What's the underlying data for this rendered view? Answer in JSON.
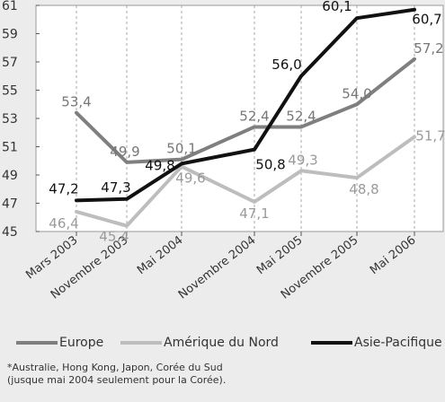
{
  "chart_data": {
    "type": "line",
    "categories": [
      "Mars 2003",
      "Novembre 2003",
      "Mai 2004",
      "Novembre 2004",
      "Mai 2005",
      "Novembre 2005",
      "Mai 2006"
    ],
    "y_ticks": [
      "61",
      "59",
      "57",
      "55",
      "53",
      "51",
      "49",
      "47",
      "45"
    ],
    "ylim": [
      45,
      61
    ],
    "grid": "vertical dashed",
    "legend_position": "bottom",
    "series": [
      {
        "name": "Europe",
        "color": "#7f7f7f",
        "values": [
          53.4,
          49.9,
          50.1,
          52.4,
          52.4,
          54.0,
          57.2
        ],
        "labels": [
          "53,4",
          "49,9",
          "50,1",
          "52,4",
          "52,4",
          "54,0",
          "57,2"
        ]
      },
      {
        "name": "Amérique du Nord",
        "color": "#bdbdbd",
        "values": [
          46.4,
          45.4,
          49.6,
          47.1,
          49.3,
          48.8,
          51.7
        ],
        "labels": [
          "46,4",
          "45,4",
          "49,6",
          "47,1",
          "49,3",
          "48,8",
          "51,7"
        ]
      },
      {
        "name": "Asie-Pacifique",
        "color": "#111111",
        "values": [
          47.2,
          47.3,
          49.8,
          50.8,
          56.0,
          60.1,
          60.7
        ],
        "labels": [
          "47,2",
          "47,3",
          "49,8",
          "50,8",
          "56,0",
          "60,1",
          "60,7"
        ]
      }
    ]
  },
  "footnote": {
    "line1": "*Australie, Hong Kong, Japon, Corée du Sud",
    "line2": "(jusque mai 2004 seulement pour la Corée)."
  }
}
